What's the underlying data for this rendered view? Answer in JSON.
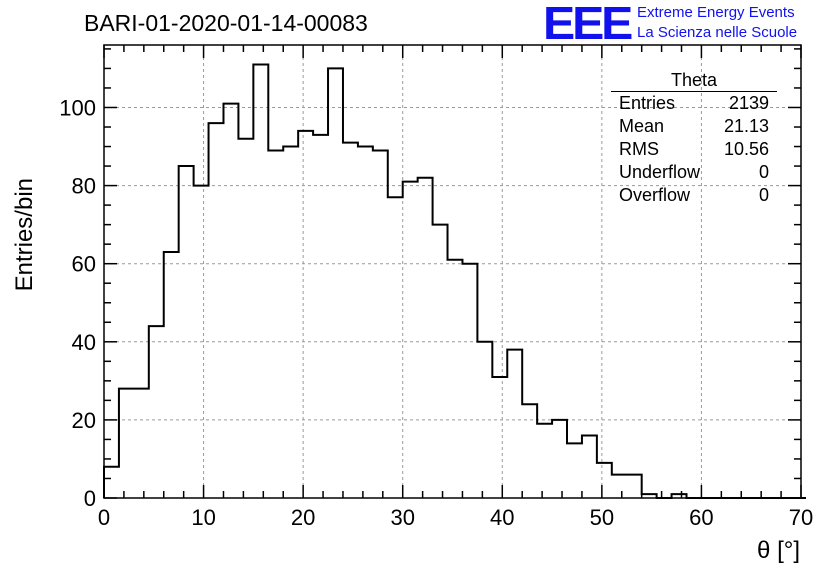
{
  "title": "BARI-01-2020-01-14-00083",
  "logo": {
    "mark": "EEE",
    "line1": "Extreme Energy Events",
    "line2": "La Scienza nelle Scuole",
    "color": "#1111ee"
  },
  "stats": {
    "name": "Theta",
    "rows": [
      {
        "label": "Entries",
        "value": "2139"
      },
      {
        "label": "Mean",
        "value": "21.13"
      },
      {
        "label": "RMS",
        "value": "10.56"
      },
      {
        "label": "Underflow",
        "value": "0"
      },
      {
        "label": "Overflow",
        "value": "0"
      }
    ]
  },
  "chart_data": {
    "type": "bar",
    "title": "BARI-01-2020-01-14-00083",
    "xlabel": "θ [°]",
    "ylabel": "Entries/bin",
    "xlim": [
      0,
      70
    ],
    "ylim": [
      0,
      116
    ],
    "xticks": [
      0,
      10,
      20,
      30,
      40,
      50,
      60,
      70
    ],
    "yticks": [
      0,
      20,
      40,
      60,
      80,
      100
    ],
    "grid": true,
    "bin_width": 1.5,
    "bin_edges_start": 0,
    "values": [
      8,
      28,
      28,
      44,
      63,
      85,
      80,
      96,
      101,
      92,
      111,
      89,
      90,
      94,
      93,
      110,
      91,
      90,
      89,
      77,
      81,
      82,
      70,
      61,
      60,
      40,
      31,
      38,
      24,
      19,
      20,
      14,
      16,
      9,
      6,
      6,
      1,
      0,
      1,
      0,
      0,
      0,
      0,
      0,
      0,
      0,
      0
    ]
  }
}
